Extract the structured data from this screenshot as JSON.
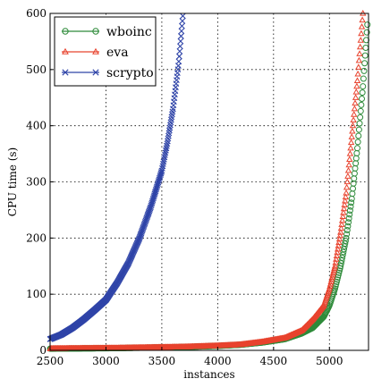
{
  "chart_data": {
    "type": "scatter",
    "title": "",
    "xlabel": "instances",
    "ylabel": "CPU time (s)",
    "xlim": [
      2500,
      5350
    ],
    "ylim": [
      0,
      600
    ],
    "xticks": [
      2500,
      3000,
      3500,
      4000,
      4500,
      5000
    ],
    "yticks": [
      0,
      100,
      200,
      300,
      400,
      500,
      600
    ],
    "grid": true,
    "legend_position": "top-left",
    "series": [
      {
        "name": "wboinc",
        "color": "#2e8b3a",
        "marker": "circle",
        "points": [
          [
            2500,
            3.0
          ],
          [
            2800,
            3.5
          ],
          [
            3100,
            4.0
          ],
          [
            3400,
            5.0
          ],
          [
            3700,
            6.0
          ],
          [
            4000,
            8.0
          ],
          [
            4200,
            10.0
          ],
          [
            4400,
            14.0
          ],
          [
            4600,
            20.0
          ],
          [
            4750,
            30.0
          ],
          [
            4850,
            40.0
          ],
          [
            4950,
            60.0
          ],
          [
            5000,
            80.0
          ],
          [
            5050,
            110.0
          ],
          [
            5100,
            150.0
          ],
          [
            5150,
            200.0
          ],
          [
            5200,
            270.0
          ],
          [
            5250,
            360.0
          ],
          [
            5300,
            470.0
          ],
          [
            5340,
            580.0
          ]
        ]
      },
      {
        "name": "eva",
        "color": "#e8432e",
        "marker": "triangle",
        "points": [
          [
            2500,
            3.0
          ],
          [
            2800,
            3.5
          ],
          [
            3100,
            4.0
          ],
          [
            3400,
            5.0
          ],
          [
            3700,
            6.0
          ],
          [
            4000,
            8.0
          ],
          [
            4200,
            10.0
          ],
          [
            4400,
            15.0
          ],
          [
            4600,
            22.0
          ],
          [
            4750,
            35.0
          ],
          [
            4850,
            55.0
          ],
          [
            4950,
            80.0
          ],
          [
            5000,
            110.0
          ],
          [
            5050,
            150.0
          ],
          [
            5100,
            210.0
          ],
          [
            5150,
            280.0
          ],
          [
            5200,
            380.0
          ],
          [
            5250,
            480.0
          ],
          [
            5300,
            600.0
          ]
        ]
      },
      {
        "name": "scrypto",
        "color": "#2f44a8",
        "marker": "x",
        "points": [
          [
            2500,
            20
          ],
          [
            2600,
            28
          ],
          [
            2700,
            40
          ],
          [
            2800,
            55
          ],
          [
            2900,
            72
          ],
          [
            3000,
            90
          ],
          [
            3100,
            120
          ],
          [
            3200,
            155
          ],
          [
            3300,
            200
          ],
          [
            3400,
            255
          ],
          [
            3500,
            320
          ],
          [
            3550,
            370
          ],
          [
            3600,
            430
          ],
          [
            3650,
            510
          ],
          [
            3690,
            600
          ]
        ]
      }
    ]
  }
}
